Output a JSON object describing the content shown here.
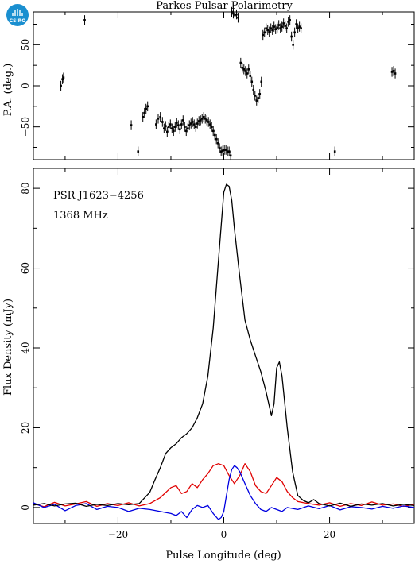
{
  "title": "Parkes Pulsar Polarimetry",
  "logo": {
    "text": "CSIRO",
    "color": "#1a8fd0"
  },
  "chart_data": [
    {
      "type": "scatter",
      "name": "pa_panel",
      "ylabel": "P.A. (deg.)",
      "xlim": [
        -36,
        36
      ],
      "ylim": [
        -90,
        90
      ],
      "yticks": [
        -50,
        0,
        50
      ],
      "error_bar_deg": 6,
      "points": [
        [
          -30.8,
          0
        ],
        [
          -30.5,
          8
        ],
        [
          -30.3,
          10
        ],
        [
          -26.3,
          80
        ],
        [
          -17.5,
          -48
        ],
        [
          -16.2,
          -80
        ],
        [
          -15.3,
          -38
        ],
        [
          -15.0,
          -33
        ],
        [
          -14.7,
          -28
        ],
        [
          -14.4,
          -25
        ],
        [
          -12.8,
          -47
        ],
        [
          -12.4,
          -40
        ],
        [
          -12.0,
          -38
        ],
        [
          -11.6,
          -44
        ],
        [
          -11.3,
          -52
        ],
        [
          -11.0,
          -49
        ],
        [
          -10.7,
          -56
        ],
        [
          -10.4,
          -50
        ],
        [
          -10.1,
          -47
        ],
        [
          -9.8,
          -52
        ],
        [
          -9.5,
          -55
        ],
        [
          -9.2,
          -50
        ],
        [
          -8.9,
          -45
        ],
        [
          -8.6,
          -48
        ],
        [
          -8.3,
          -53
        ],
        [
          -8.0,
          -47
        ],
        [
          -7.7,
          -42
        ],
        [
          -7.4,
          -50
        ],
        [
          -7.1,
          -55
        ],
        [
          -6.8,
          -52
        ],
        [
          -6.5,
          -48
        ],
        [
          -6.2,
          -46
        ],
        [
          -5.9,
          -44
        ],
        [
          -5.6,
          -47
        ],
        [
          -5.3,
          -50
        ],
        [
          -5.0,
          -46
        ],
        [
          -4.7,
          -43
        ],
        [
          -4.4,
          -42
        ],
        [
          -4.1,
          -40
        ],
        [
          -3.8,
          -38
        ],
        [
          -3.5,
          -40
        ],
        [
          -3.2,
          -42
        ],
        [
          -2.9,
          -44
        ],
        [
          -2.6,
          -47
        ],
        [
          -2.3,
          -50
        ],
        [
          -2.0,
          -55
        ],
        [
          -1.7,
          -60
        ],
        [
          -1.4,
          -65
        ],
        [
          -1.1,
          -70
        ],
        [
          -0.8,
          -76
        ],
        [
          -0.5,
          -80
        ],
        [
          -0.2,
          -79
        ],
        [
          0.1,
          -78
        ],
        [
          0.4,
          -78
        ],
        [
          0.7,
          -80
        ],
        [
          1.0,
          -80
        ],
        [
          1.3,
          -85
        ],
        [
          1.5,
          90
        ],
        [
          1.8,
          88
        ],
        [
          2.1,
          86
        ],
        [
          2.4,
          87
        ],
        [
          2.7,
          83
        ],
        [
          3.2,
          28
        ],
        [
          3.5,
          22
        ],
        [
          3.8,
          20
        ],
        [
          4.1,
          18
        ],
        [
          4.4,
          15
        ],
        [
          4.7,
          20
        ],
        [
          5.0,
          12
        ],
        [
          5.3,
          5
        ],
        [
          5.6,
          -5
        ],
        [
          5.9,
          -12
        ],
        [
          6.2,
          -18
        ],
        [
          6.5,
          -15
        ],
        [
          6.8,
          -10
        ],
        [
          7.1,
          5
        ],
        [
          7.4,
          62
        ],
        [
          7.7,
          65
        ],
        [
          8.0,
          70
        ],
        [
          8.3,
          68
        ],
        [
          8.6,
          66
        ],
        [
          8.9,
          70
        ],
        [
          9.2,
          68
        ],
        [
          9.5,
          72
        ],
        [
          9.8,
          69
        ],
        [
          10.1,
          71
        ],
        [
          10.4,
          74
        ],
        [
          10.7,
          70
        ],
        [
          11.0,
          72
        ],
        [
          11.3,
          76
        ],
        [
          11.6,
          73
        ],
        [
          11.9,
          70
        ],
        [
          12.2,
          78
        ],
        [
          12.5,
          80
        ],
        [
          12.8,
          60
        ],
        [
          13.1,
          50
        ],
        [
          13.4,
          65
        ],
        [
          13.7,
          75
        ],
        [
          14.0,
          70
        ],
        [
          14.3,
          72
        ],
        [
          14.6,
          70
        ],
        [
          21.0,
          -80
        ],
        [
          31.8,
          17
        ],
        [
          32.1,
          18
        ],
        [
          32.4,
          15
        ]
      ]
    },
    {
      "type": "line",
      "name": "profile_panel",
      "xlabel": "Pulse Longitude (deg)",
      "ylabel": "Flux Density (mJy)",
      "xlim": [
        -36,
        36
      ],
      "ylim": [
        -4,
        85
      ],
      "xticks": [
        -20,
        0,
        20
      ],
      "yticks": [
        0,
        20,
        40,
        60,
        80
      ],
      "annotations": [
        "PSR J1623−4256",
        "1368 MHz"
      ],
      "series": [
        {
          "color": "#000000",
          "x": [
            -36,
            -34,
            -32,
            -30,
            -28,
            -26,
            -24,
            -22,
            -20,
            -18,
            -16,
            -14,
            -13,
            -12,
            -11,
            -10,
            -9,
            -8,
            -7,
            -6,
            -5,
            -4,
            -3,
            -2,
            -1,
            0,
            0.5,
            1,
            1.5,
            2,
            3,
            4,
            5,
            6,
            7,
            8,
            9,
            9.5,
            10,
            10.5,
            11,
            12,
            13,
            14,
            15,
            16,
            17,
            18,
            20,
            22,
            24,
            26,
            28,
            30,
            32,
            34,
            36
          ],
          "y": [
            0.6,
            1.0,
            0.4,
            0.9,
            1.1,
            0.3,
            0.8,
            0.5,
            1.0,
            0.7,
            1.0,
            3.8,
            7.0,
            10.0,
            13.5,
            15.0,
            16.0,
            17.5,
            18.5,
            20.0,
            22.5,
            26.0,
            33.0,
            45.0,
            62.0,
            79.0,
            81.0,
            80.5,
            77.0,
            70.0,
            58.0,
            47.0,
            42.0,
            38.0,
            34.0,
            29.0,
            23.0,
            26.0,
            35.0,
            36.5,
            33.0,
            20.0,
            9.0,
            3.0,
            1.8,
            1.2,
            2.0,
            1.0,
            0.4,
            1.1,
            0.3,
            0.9,
            0.6,
            1.0,
            0.4,
            0.8,
            0.5
          ]
        },
        {
          "color": "#e00000",
          "x": [
            -36,
            -34,
            -32,
            -30,
            -28,
            -26,
            -24,
            -22,
            -20,
            -18,
            -16,
            -14,
            -12,
            -10,
            -9,
            -8,
            -7,
            -6,
            -5,
            -4,
            -3,
            -2,
            -1,
            0,
            1,
            2,
            3,
            4,
            5,
            6,
            7,
            8,
            9,
            10,
            11,
            12,
            13,
            14,
            16,
            18,
            20,
            22,
            24,
            26,
            28,
            30,
            32,
            34,
            36
          ],
          "y": [
            1.0,
            0.2,
            1.3,
            0.4,
            0.9,
            1.5,
            0.3,
            1.0,
            0.5,
            1.2,
            0.4,
            1.0,
            2.5,
            5.0,
            5.5,
            3.5,
            4.0,
            6.0,
            5.0,
            7.0,
            8.5,
            10.5,
            11.0,
            10.5,
            8.0,
            6.0,
            8.0,
            11.0,
            9.0,
            5.5,
            4.0,
            3.5,
            5.5,
            7.5,
            6.5,
            4.0,
            2.5,
            1.5,
            1.0,
            0.6,
            1.2,
            0.3,
            1.0,
            0.5,
            1.4,
            0.6,
            0.9,
            0.3,
            0.8
          ]
        },
        {
          "color": "#0000e0",
          "x": [
            -36,
            -34,
            -32,
            -30,
            -28,
            -26,
            -24,
            -22,
            -20,
            -18,
            -16,
            -14,
            -12,
            -10,
            -9,
            -8,
            -7,
            -6,
            -5,
            -4,
            -3,
            -2,
            -1,
            -0.5,
            0,
            0.5,
            1,
            1.5,
            2,
            2.5,
            3,
            4,
            5,
            6,
            7,
            8,
            9,
            10,
            11,
            12,
            14,
            16,
            18,
            20,
            22,
            24,
            26,
            28,
            30,
            32,
            34,
            36
          ],
          "y": [
            1.2,
            0.0,
            0.8,
            -0.8,
            0.5,
            1.0,
            -0.5,
            0.3,
            0.0,
            -1.0,
            -0.2,
            -0.5,
            -1.0,
            -1.5,
            -2.0,
            -1.0,
            -2.5,
            -0.5,
            0.5,
            0.0,
            0.5,
            -1.5,
            -3.0,
            -2.5,
            -1.0,
            3.0,
            7.0,
            9.5,
            10.5,
            10.0,
            9.0,
            6.0,
            3.0,
            1.0,
            -0.5,
            -1.0,
            0.0,
            -0.5,
            -1.0,
            0.0,
            -0.5,
            0.4,
            -0.3,
            0.5,
            -0.6,
            0.2,
            0.0,
            -0.4,
            0.3,
            -0.2,
            0.4,
            0.0
          ]
        }
      ]
    }
  ]
}
